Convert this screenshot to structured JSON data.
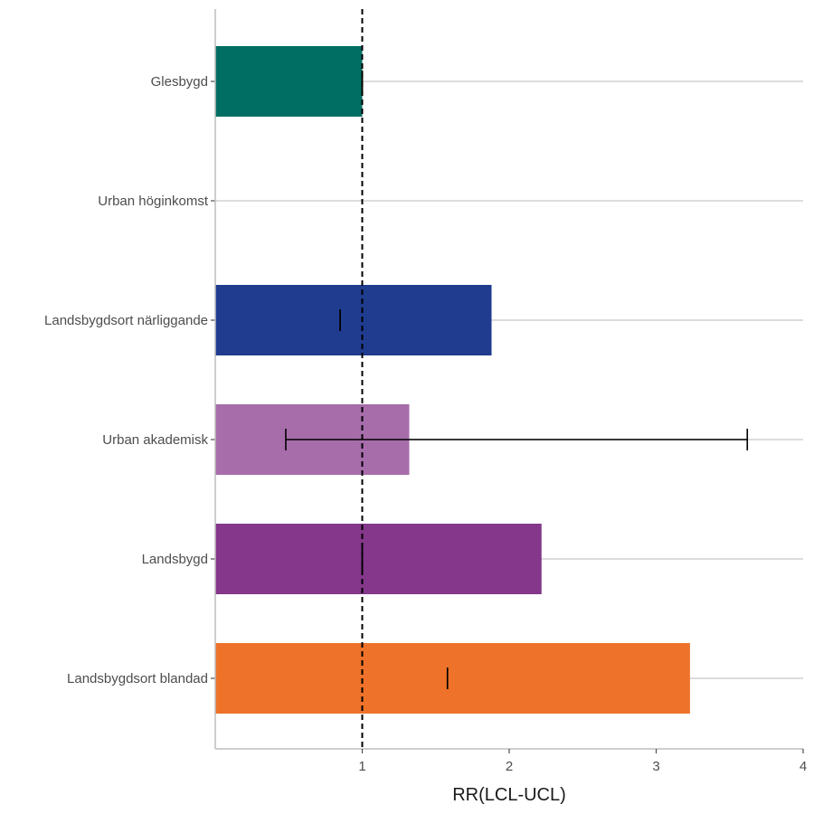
{
  "chart_data": {
    "type": "bar",
    "orientation": "horizontal",
    "title": "",
    "xlabel": "RR(LCL-UCL)",
    "ylabel": "",
    "xlim": [
      0,
      4
    ],
    "x_ticks": [
      1,
      2,
      3,
      4
    ],
    "reference_line": 1,
    "grid": "horizontal",
    "legend": "none",
    "categories": [
      "Glesbygd",
      "Urban höginkomst",
      "Landsbygdsort närliggande",
      "Urban akademisk",
      "Landsbygd",
      "Landsbygdsort blandad"
    ],
    "values": [
      1.0,
      null,
      1.88,
      1.32,
      2.22,
      3.23
    ],
    "error_low": [
      1.0,
      null,
      0.85,
      0.48,
      1.0,
      1.58
    ],
    "error_high": [
      1.0,
      null,
      0.85,
      3.62,
      1.0,
      1.58
    ],
    "colors": [
      "#006E62",
      null,
      "#1F3C8F",
      "#A76DAB",
      "#84378B",
      "#EE7229"
    ]
  }
}
